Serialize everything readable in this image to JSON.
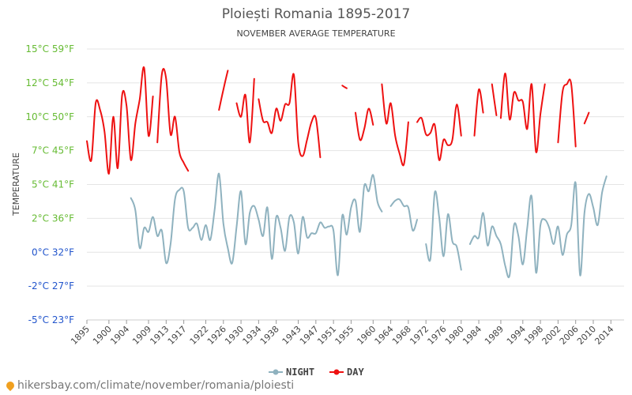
{
  "chart_data": {
    "type": "line",
    "title": "Ploiești Romania 1895-2017",
    "subtitle": "NOVEMBER AVERAGE TEMPERATURE",
    "ylabel": "TEMPERATURE",
    "ylim": [
      -5,
      15
    ],
    "y_ticks": [
      {
        "value": 15,
        "label": "15°C 59°F",
        "color": "#66bb33"
      },
      {
        "value": 12.5,
        "label": "12°C 54°F",
        "color": "#66bb33"
      },
      {
        "value": 10,
        "label": "10°C 50°F",
        "color": "#66bb33"
      },
      {
        "value": 7.5,
        "label": "7°C 45°F",
        "color": "#66bb33"
      },
      {
        "value": 5,
        "label": "5°C 41°F",
        "color": "#66bb33"
      },
      {
        "value": 2.5,
        "label": "2°C 36°F",
        "color": "#66bb33"
      },
      {
        "value": 0,
        "label": "0°C 32°F",
        "color": "#2255cc"
      },
      {
        "value": -2.5,
        "label": "-2°C 27°F",
        "color": "#2255cc"
      },
      {
        "value": -5,
        "label": "-5°C 23°F",
        "color": "#2255cc"
      }
    ],
    "xlim": [
      1895,
      2017
    ],
    "x_ticks": [
      1895,
      1900,
      1904,
      1909,
      1913,
      1917,
      1922,
      1926,
      1930,
      1934,
      1938,
      1943,
      1947,
      1951,
      1955,
      1960,
      1964,
      1968,
      1972,
      1976,
      1980,
      1984,
      1989,
      1994,
      1998,
      2002,
      2006,
      2010,
      2014
    ],
    "series": [
      {
        "name": "NIGHT",
        "color": "#8fb2bf",
        "points": [
          [
            1905,
            4.0
          ],
          [
            1906,
            3.1
          ],
          [
            1907,
            0.3
          ],
          [
            1908,
            1.8
          ],
          [
            1909,
            1.5
          ],
          [
            1910,
            2.6
          ],
          [
            1911,
            1.2
          ],
          [
            1912,
            1.6
          ],
          [
            1913,
            -0.8
          ],
          [
            1914,
            0.6
          ],
          [
            1915,
            3.9
          ],
          [
            1916,
            4.6
          ],
          [
            1917,
            4.5
          ],
          [
            1918,
            1.8
          ],
          [
            1919,
            1.8
          ],
          [
            1920,
            2.1
          ],
          [
            1921,
            0.9
          ],
          [
            1922,
            2.0
          ],
          [
            1923,
            0.9
          ],
          [
            1924,
            3.1
          ],
          [
            1925,
            5.8
          ],
          [
            1926,
            2.1
          ],
          [
            1927,
            0.3
          ],
          [
            1928,
            -0.8
          ],
          [
            1929,
            1.9
          ],
          [
            1930,
            4.5
          ],
          [
            1931,
            0.6
          ],
          [
            1932,
            2.9
          ],
          [
            1933,
            3.4
          ],
          [
            1934,
            2.4
          ],
          [
            1935,
            1.2
          ],
          [
            1936,
            3.3
          ],
          [
            1937,
            -0.5
          ],
          [
            1938,
            2.6
          ],
          [
            1939,
            1.8
          ],
          [
            1940,
            0.1
          ],
          [
            1941,
            2.6
          ],
          [
            1942,
            2.2
          ],
          [
            1943,
            -0.1
          ],
          [
            1944,
            2.6
          ],
          [
            1945,
            1.1
          ],
          [
            1946,
            1.4
          ],
          [
            1947,
            1.4
          ],
          [
            1948,
            2.2
          ],
          [
            1949,
            1.8
          ],
          [
            1950,
            1.9
          ],
          [
            1951,
            1.6
          ],
          [
            1952,
            -1.7
          ],
          [
            1953,
            2.7
          ],
          [
            1954,
            1.3
          ],
          [
            1955,
            3.3
          ],
          [
            1956,
            3.8
          ],
          [
            1957,
            1.5
          ],
          [
            1958,
            4.9
          ],
          [
            1959,
            4.5
          ],
          [
            1960,
            5.7
          ],
          [
            1961,
            3.7
          ],
          [
            1962,
            3.0
          ],
          [
            null,
            null
          ],
          [
            1964,
            3.4
          ],
          [
            1965,
            3.8
          ],
          [
            1966,
            3.9
          ],
          [
            1967,
            3.4
          ],
          [
            1968,
            3.3
          ],
          [
            1969,
            1.6
          ],
          [
            1970,
            2.4
          ],
          [
            null,
            null
          ],
          [
            1972,
            0.6
          ],
          [
            1973,
            -0.5
          ],
          [
            1974,
            4.4
          ],
          [
            1975,
            2.6
          ],
          [
            1976,
            -0.3
          ],
          [
            1977,
            2.8
          ],
          [
            1978,
            0.8
          ],
          [
            1979,
            0.4
          ],
          [
            1980,
            -1.3
          ],
          [
            null,
            null
          ],
          [
            1982,
            0.6
          ],
          [
            1983,
            1.2
          ],
          [
            1984,
            1.1
          ],
          [
            1985,
            2.9
          ],
          [
            1986,
            0.5
          ],
          [
            1987,
            1.9
          ],
          [
            1988,
            1.2
          ],
          [
            1989,
            0.6
          ],
          [
            1990,
            -1.0
          ],
          [
            1991,
            -1.7
          ],
          [
            1992,
            2.0
          ],
          [
            1993,
            1.2
          ],
          [
            1994,
            -0.9
          ],
          [
            1995,
            1.8
          ],
          [
            1996,
            4.1
          ],
          [
            1997,
            -1.5
          ],
          [
            1998,
            2.0
          ],
          [
            1999,
            2.4
          ],
          [
            2000,
            1.8
          ],
          [
            2001,
            0.6
          ],
          [
            2002,
            1.9
          ],
          [
            2003,
            -0.2
          ],
          [
            2004,
            1.3
          ],
          [
            2005,
            2.0
          ],
          [
            2006,
            5.1
          ],
          [
            2007,
            -1.7
          ],
          [
            2008,
            2.9
          ],
          [
            2009,
            4.3
          ],
          [
            2010,
            3.3
          ],
          [
            2011,
            2.0
          ],
          [
            2012,
            4.4
          ],
          [
            2013,
            5.6
          ]
        ]
      },
      {
        "name": "DAY",
        "color": "#ee1111",
        "points": [
          [
            1895,
            8.2
          ],
          [
            1896,
            6.8
          ],
          [
            1897,
            11.0
          ],
          [
            1898,
            10.5
          ],
          [
            1899,
            8.9
          ],
          [
            1900,
            5.8
          ],
          [
            1901,
            10.0
          ],
          [
            1902,
            6.2
          ],
          [
            1903,
            11.6
          ],
          [
            1904,
            10.8
          ],
          [
            1905,
            6.8
          ],
          [
            1906,
            9.5
          ],
          [
            1907,
            11.3
          ],
          [
            1908,
            13.6
          ],
          [
            1909,
            8.6
          ],
          [
            1910,
            11.5
          ],
          [
            null,
            null
          ],
          [
            1911,
            8.1
          ],
          [
            1912,
            13.1
          ],
          [
            1913,
            12.8
          ],
          [
            1914,
            8.7
          ],
          [
            1915,
            10.0
          ],
          [
            1916,
            7.4
          ],
          [
            1917,
            6.6
          ],
          [
            1918,
            6.0
          ],
          [
            null,
            null
          ],
          [
            1925,
            10.5
          ],
          [
            1926,
            12.0
          ],
          [
            1927,
            13.4
          ],
          [
            null,
            null
          ],
          [
            1929,
            11.0
          ],
          [
            1930,
            10.0
          ],
          [
            1931,
            11.6
          ],
          [
            1932,
            8.1
          ],
          [
            1933,
            12.8
          ],
          [
            null,
            null
          ],
          [
            1934,
            11.3
          ],
          [
            1935,
            9.7
          ],
          [
            1936,
            9.6
          ],
          [
            1937,
            8.8
          ],
          [
            1938,
            10.6
          ],
          [
            1939,
            9.7
          ],
          [
            1940,
            10.9
          ],
          [
            1941,
            11.0
          ],
          [
            1942,
            13.1
          ],
          [
            1943,
            8.1
          ],
          [
            1944,
            7.1
          ],
          [
            1945,
            8.3
          ],
          [
            1946,
            9.6
          ],
          [
            1947,
            9.9
          ],
          [
            1948,
            7.0
          ],
          [
            null,
            null
          ],
          [
            1953,
            12.3
          ],
          [
            1954,
            12.1
          ],
          [
            null,
            null
          ],
          [
            1956,
            10.3
          ],
          [
            1957,
            8.3
          ],
          [
            1958,
            9.1
          ],
          [
            1959,
            10.6
          ],
          [
            1960,
            9.4
          ],
          [
            null,
            null
          ],
          [
            1962,
            12.4
          ],
          [
            1963,
            9.5
          ],
          [
            1964,
            11.0
          ],
          [
            1965,
            8.6
          ],
          [
            1966,
            7.3
          ],
          [
            1967,
            6.5
          ],
          [
            1968,
            9.6
          ],
          [
            null,
            null
          ],
          [
            1970,
            9.6
          ],
          [
            1971,
            9.9
          ],
          [
            1972,
            8.7
          ],
          [
            1973,
            8.8
          ],
          [
            1974,
            9.4
          ],
          [
            1975,
            6.8
          ],
          [
            1976,
            8.3
          ],
          [
            1977,
            7.9
          ],
          [
            1978,
            8.3
          ],
          [
            1979,
            10.9
          ],
          [
            1980,
            8.6
          ],
          [
            null,
            null
          ],
          [
            1983,
            8.6
          ],
          [
            1984,
            12.0
          ],
          [
            1985,
            10.3
          ],
          [
            null,
            null
          ],
          [
            1987,
            12.4
          ],
          [
            1988,
            10.1
          ],
          [
            null,
            null
          ],
          [
            1989,
            9.9
          ],
          [
            1990,
            13.2
          ],
          [
            1991,
            9.8
          ],
          [
            1992,
            11.8
          ],
          [
            1993,
            11.2
          ],
          [
            1994,
            11.1
          ],
          [
            1995,
            9.1
          ],
          [
            1996,
            12.4
          ],
          [
            1997,
            7.4
          ],
          [
            1998,
            10.2
          ],
          [
            1999,
            12.4
          ],
          [
            null,
            null
          ],
          [
            2002,
            8.1
          ],
          [
            2003,
            11.8
          ],
          [
            2004,
            12.4
          ],
          [
            2005,
            12.4
          ],
          [
            2006,
            7.8
          ],
          [
            null,
            null
          ],
          [
            2008,
            9.5
          ],
          [
            2009,
            10.3
          ]
        ]
      }
    ],
    "legend": {
      "position": "bottom",
      "items": [
        "NIGHT",
        "DAY"
      ]
    }
  },
  "footer": {
    "text": "hikersbay.com/climate/november/romania/ploiesti"
  }
}
